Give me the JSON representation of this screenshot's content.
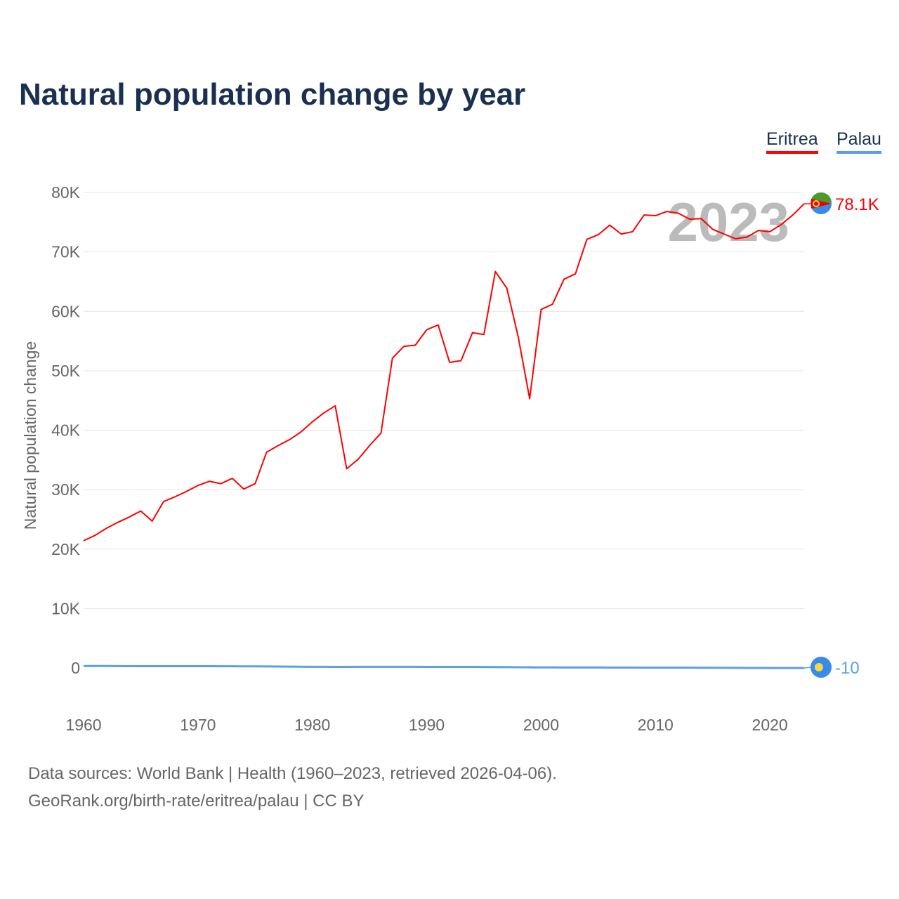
{
  "chart_data": {
    "type": "line",
    "title": "Natural population change by year",
    "xlabel": "",
    "ylabel": "Natural population change",
    "xlim": [
      1960,
      2023
    ],
    "ylim": [
      -5000,
      85000
    ],
    "yticks": [
      0,
      10000,
      20000,
      30000,
      40000,
      50000,
      60000,
      70000,
      80000
    ],
    "ytick_labels": [
      "0",
      "10K",
      "20K",
      "30K",
      "40K",
      "50K",
      "60K",
      "70K",
      "80K"
    ],
    "xticks": [
      1960,
      1970,
      1980,
      1990,
      2000,
      2010,
      2020
    ],
    "xtick_labels": [
      "1960",
      "1970",
      "1980",
      "1990",
      "2000",
      "2010",
      "2020"
    ],
    "grid": true,
    "legend_placement": "top-right",
    "year_watermark": "2023",
    "x": [
      1960,
      1961,
      1962,
      1963,
      1964,
      1965,
      1966,
      1967,
      1968,
      1969,
      1970,
      1971,
      1972,
      1973,
      1974,
      1975,
      1976,
      1977,
      1978,
      1979,
      1980,
      1981,
      1982,
      1983,
      1984,
      1985,
      1986,
      1987,
      1988,
      1989,
      1990,
      1991,
      1992,
      1993,
      1994,
      1995,
      1996,
      1997,
      1998,
      1999,
      2000,
      2001,
      2002,
      2003,
      2004,
      2005,
      2006,
      2007,
      2008,
      2009,
      2010,
      2011,
      2012,
      2013,
      2014,
      2015,
      2016,
      2017,
      2018,
      2019,
      2020,
      2021,
      2022,
      2023
    ],
    "series": [
      {
        "name": "Eritrea",
        "color": "#ff0000",
        "end_label": "78.1K",
        "values": [
          21400,
          22300,
          23500,
          24500,
          25400,
          26400,
          24700,
          28000,
          28800,
          29700,
          30700,
          31400,
          31000,
          31900,
          30100,
          31000,
          36300,
          37400,
          38400,
          39700,
          41400,
          42900,
          44100,
          33500,
          35100,
          37400,
          39500,
          52100,
          54100,
          54300,
          56900,
          57700,
          51400,
          51700,
          56400,
          56100,
          66700,
          63900,
          55700,
          45300,
          60300,
          61200,
          65400,
          66300,
          72100,
          72900,
          74500,
          73000,
          73400,
          76200,
          76100,
          76800,
          76500,
          75500,
          75600,
          73800,
          73000,
          72200,
          72500,
          73600,
          73400,
          74600,
          76200,
          78100
        ]
      },
      {
        "name": "Palau",
        "color": "#5aa0e8",
        "end_label": "-10",
        "values": [
          320,
          330,
          320,
          310,
          300,
          300,
          290,
          290,
          290,
          290,
          290,
          290,
          280,
          280,
          270,
          260,
          250,
          240,
          220,
          200,
          190,
          190,
          180,
          180,
          190,
          190,
          190,
          190,
          190,
          190,
          180,
          170,
          170,
          170,
          170,
          160,
          150,
          140,
          120,
          100,
          90,
          90,
          80,
          80,
          70,
          70,
          60,
          60,
          60,
          50,
          50,
          50,
          40,
          40,
          30,
          30,
          20,
          10,
          0,
          0,
          -10,
          -10,
          -10,
          -10
        ]
      }
    ]
  },
  "sources": {
    "line1": "Data sources: World Bank | Health (1960–2023, retrieved 2026-04-06).",
    "line2": "GeoRank.org/birth-rate/eritrea/palau | CC BY"
  }
}
